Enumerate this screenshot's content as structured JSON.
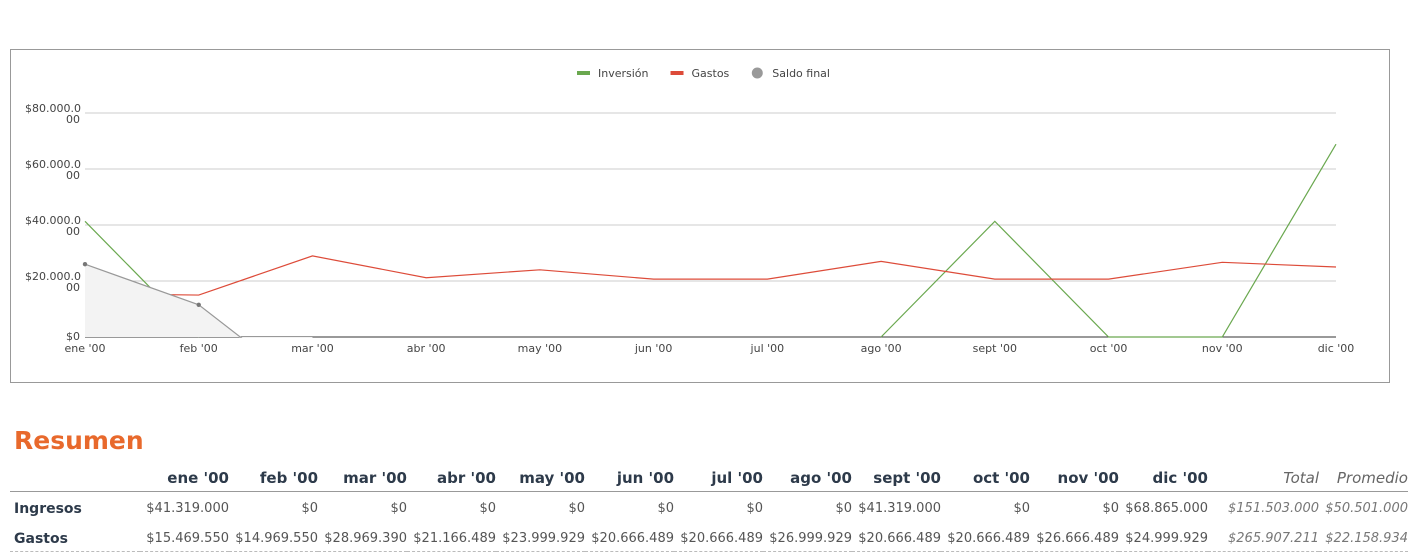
{
  "chart_data": {
    "type": "line",
    "categories": [
      "ene '00",
      "feb '00",
      "mar '00",
      "abr '00",
      "may '00",
      "jun '00",
      "jul '00",
      "ago '00",
      "sept '00",
      "oct '00",
      "nov '00",
      "dic '00"
    ],
    "series": [
      {
        "name": "Inversión",
        "color": "#6aa84f",
        "values": [
          41319000,
          0,
          null,
          null,
          null,
          null,
          null,
          0,
          41319000,
          0,
          0,
          68865000
        ]
      },
      {
        "name": "Gastos",
        "color": "#dd4b39",
        "values": [
          15469550,
          14969550,
          28969390,
          21166489,
          23999929,
          20666489,
          20666489,
          26999929,
          20666489,
          20666489,
          26666489,
          24999929
        ]
      },
      {
        "name": "Saldo final",
        "color": "#999999",
        "values": [
          26000000,
          11500000,
          -20000000,
          null,
          null,
          null,
          null,
          null,
          null,
          null,
          null,
          null
        ]
      }
    ],
    "ylim": [
      0,
      80000000
    ],
    "yticks": [
      {
        "value": 0,
        "label": "$0"
      },
      {
        "value": 20000000,
        "label": "$20.000.000"
      },
      {
        "value": 40000000,
        "label": "$40.000.000"
      },
      {
        "value": 60000000,
        "label": "$60.000.000"
      },
      {
        "value": 80000000,
        "label": "$80.000.000"
      }
    ],
    "grid": true,
    "legend": "top"
  },
  "summary": {
    "title": "Resumen",
    "columns": [
      "ene '00",
      "feb '00",
      "mar '00",
      "abr '00",
      "may '00",
      "jun '00",
      "jul '00",
      "ago '00",
      "sept '00",
      "oct '00",
      "nov '00",
      "dic '00",
      "Total",
      "Promedio"
    ],
    "rows": [
      {
        "label": "Ingresos",
        "cells": [
          "$41.319.000",
          "$0",
          "$0",
          "$0",
          "$0",
          "$0",
          "$0",
          "$0",
          "$41.319.000",
          "$0",
          "$0",
          "$68.865.000",
          "$151.503.000",
          "$50.501.000"
        ]
      },
      {
        "label": "Gastos",
        "cells": [
          "$15.469.550",
          "$14.969.550",
          "$28.969.390",
          "$21.166.489",
          "$23.999.929",
          "$20.666.489",
          "$20.666.489",
          "$26.999.929",
          "$20.666.489",
          "$20.666.489",
          "$26.666.489",
          "$24.999.929",
          "$265.907.211",
          "$22.158.934"
        ]
      }
    ]
  }
}
